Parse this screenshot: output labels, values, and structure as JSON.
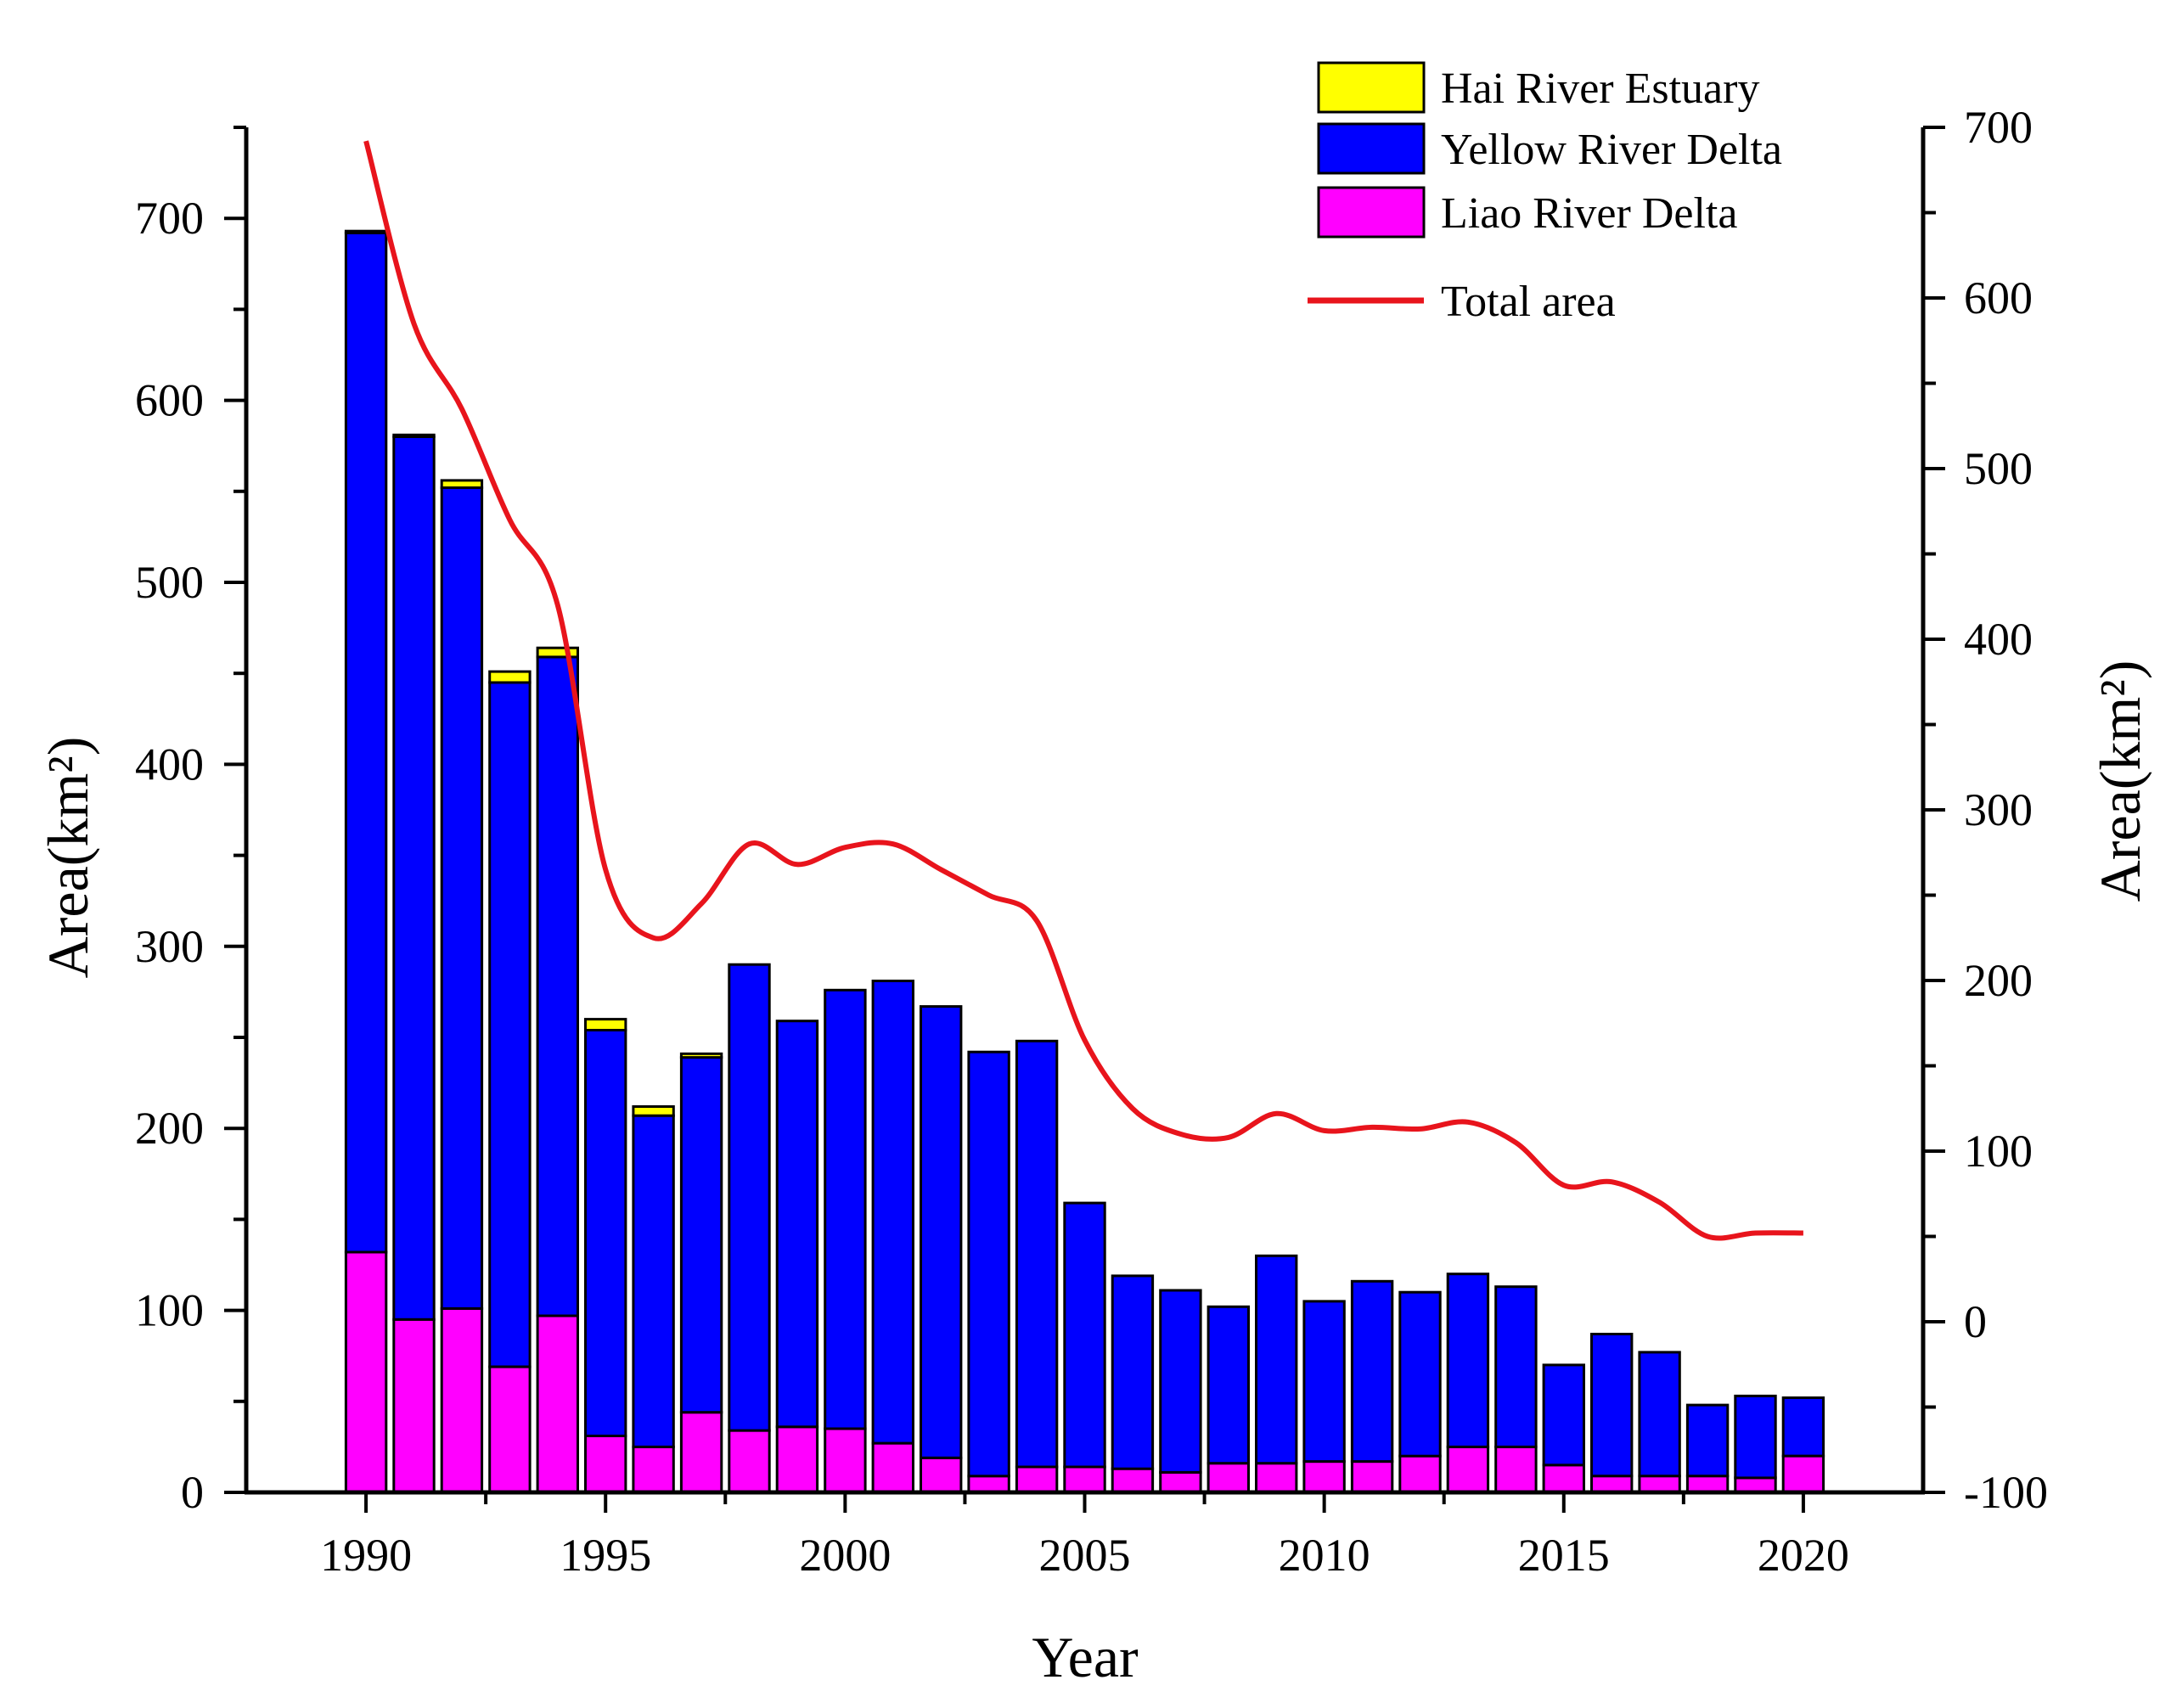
{
  "chart_data": {
    "type": "bar",
    "stacked": true,
    "xlabel": "Year",
    "ylabel_left": "Area(km²)",
    "ylabel_right": "Area(km²)",
    "ylim_left": [
      0,
      750
    ],
    "ylim_right": [
      -100,
      700
    ],
    "yticks_left": [
      0,
      100,
      200,
      300,
      400,
      500,
      600,
      700
    ],
    "yticks_right": [
      -100,
      0,
      100,
      200,
      300,
      400,
      500,
      600,
      700
    ],
    "xlim": [
      1987.5,
      2022.5
    ],
    "xticks": [
      1990,
      1995,
      2000,
      2005,
      2010,
      2015,
      2020
    ],
    "legend_position": "top-right",
    "categories": [
      1990,
      1991,
      1992,
      1993,
      1994,
      1995,
      1996,
      1997,
      1998,
      1999,
      2000,
      2001,
      2002,
      2003,
      2004,
      2005,
      2006,
      2007,
      2008,
      2009,
      2010,
      2011,
      2012,
      2013,
      2014,
      2015,
      2016,
      2017,
      2018,
      2019,
      2020
    ],
    "series": [
      {
        "name": "Liao River Delta",
        "color": "#ff00ff",
        "values": [
          132,
          95,
          101,
          69,
          97,
          31,
          25,
          44,
          34,
          36,
          35,
          27,
          19,
          9,
          14,
          14,
          13,
          11,
          16,
          16,
          17,
          17,
          20,
          25,
          25,
          15,
          9,
          9,
          9,
          8,
          20
        ]
      },
      {
        "name": "Yellow River Delta",
        "color": "#0000ff",
        "values": [
          560,
          485,
          451,
          376,
          362,
          223,
          182,
          195,
          256,
          223,
          241,
          254,
          248,
          233,
          234,
          145,
          106,
          100,
          86,
          114,
          88,
          99,
          90,
          95,
          88,
          55,
          78,
          68,
          39,
          45,
          32
        ]
      },
      {
        "name": "Hai River Estuary",
        "color": "#ffff00",
        "values": [
          1,
          1,
          4,
          6,
          5,
          6,
          5,
          2,
          0,
          0,
          0,
          0,
          0,
          0,
          0,
          0,
          0,
          0,
          0,
          0,
          0,
          0,
          0,
          0,
          0,
          0,
          0,
          0,
          0,
          0,
          0
        ]
      }
    ],
    "line": {
      "name": "Total area",
      "color": "#e8141c",
      "axis": "right",
      "x": [
        1990,
        1991,
        1992,
        1993,
        1994,
        1995,
        1996,
        1997,
        1998,
        1999,
        2000,
        2001,
        2002,
        2003,
        2004,
        2005,
        2006,
        2007,
        2008,
        2009,
        2010,
        2011,
        2012,
        2013,
        2014,
        2015,
        2016,
        2017,
        2018,
        2019,
        2020
      ],
      "values": [
        692,
        585,
        535,
        470,
        420,
        265,
        225,
        245,
        280,
        268,
        278,
        280,
        265,
        250,
        235,
        165,
        125,
        110,
        108,
        122,
        112,
        114,
        113,
        117,
        105,
        80,
        82,
        70,
        50,
        52,
        52
      ]
    }
  }
}
